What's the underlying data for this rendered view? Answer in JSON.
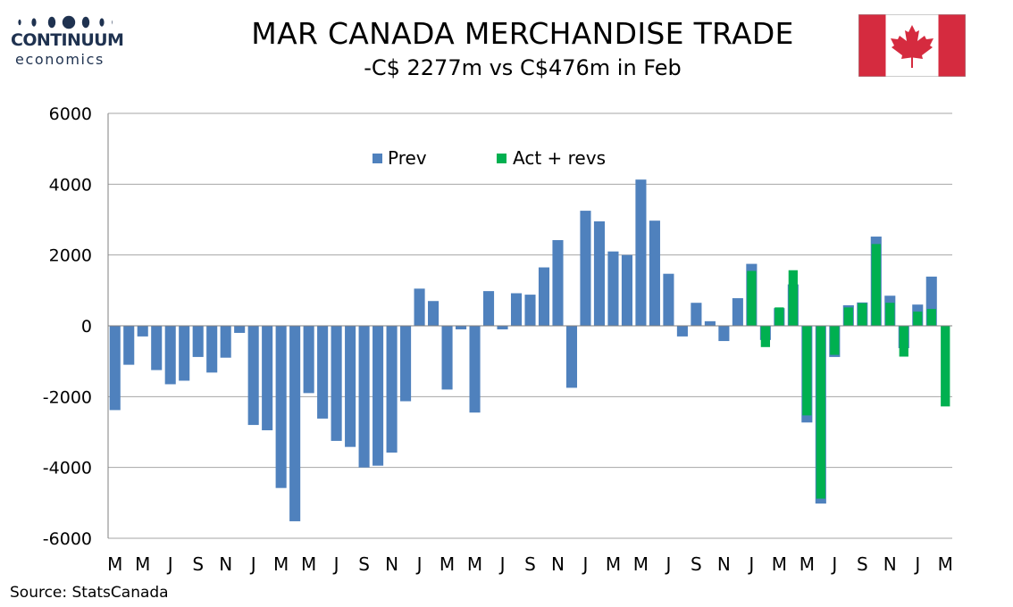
{
  "logo": {
    "brand": "CONTINUUM",
    "sub": "economics",
    "color": "#1f3250"
  },
  "title": "MAR CANADA MERCHANDISE TRADE",
  "subtitle": "-C$ 2277m vs C$476m in Feb",
  "flag": {
    "icon": "canada-flag-icon",
    "red": "#d52b3f"
  },
  "source": "Source: StatsCanada",
  "chart_data": {
    "type": "bar",
    "title": "MAR CANADA MERCHANDISE TRADE",
    "ylim": [
      -6000,
      6000
    ],
    "yticks": [
      6000,
      4000,
      2000,
      0,
      -2000,
      -4000,
      -6000
    ],
    "grid": true,
    "legend_position": "top-center",
    "x_tick_labels": [
      "M",
      "M",
      "J",
      "S",
      "N",
      "J",
      "M",
      "M",
      "J",
      "S",
      "N",
      "J",
      "M",
      "M",
      "J",
      "S",
      "N",
      "J",
      "M",
      "M",
      "J",
      "S",
      "N",
      "J",
      "M",
      "M",
      "J",
      "S",
      "N",
      "J",
      "M"
    ],
    "series": [
      {
        "name": "Prev",
        "color": "#4f81bd",
        "values": [
          -2380,
          -1100,
          -300,
          -1250,
          -1650,
          -1550,
          -880,
          -1320,
          -900,
          -200,
          -2800,
          -2950,
          -4580,
          -5520,
          -1900,
          -2620,
          -3250,
          -3420,
          -4000,
          -3950,
          -3580,
          -2130,
          1050,
          700,
          -1800,
          -100,
          -2450,
          980,
          -100,
          920,
          880,
          1650,
          2420,
          -1750,
          3250,
          2950,
          2100,
          2000,
          4130,
          2970,
          1470,
          -300,
          650,
          130,
          -430,
          780,
          1750,
          -400,
          500,
          1170,
          -2730,
          -5020,
          -880,
          580,
          660,
          2520,
          850,
          -630,
          600,
          1390,
          null
        ]
      },
      {
        "name": "Act + revs",
        "color": "#00b050",
        "values": [
          null,
          null,
          null,
          null,
          null,
          null,
          null,
          null,
          null,
          null,
          null,
          null,
          null,
          null,
          null,
          null,
          null,
          null,
          null,
          null,
          null,
          null,
          null,
          null,
          null,
          null,
          null,
          null,
          null,
          null,
          null,
          null,
          null,
          null,
          null,
          null,
          null,
          null,
          null,
          null,
          null,
          null,
          null,
          null,
          null,
          null,
          1550,
          -600,
          520,
          1570,
          -2530,
          -4880,
          -820,
          520,
          640,
          2310,
          650,
          -870,
          400,
          476,
          -2277
        ]
      }
    ]
  }
}
